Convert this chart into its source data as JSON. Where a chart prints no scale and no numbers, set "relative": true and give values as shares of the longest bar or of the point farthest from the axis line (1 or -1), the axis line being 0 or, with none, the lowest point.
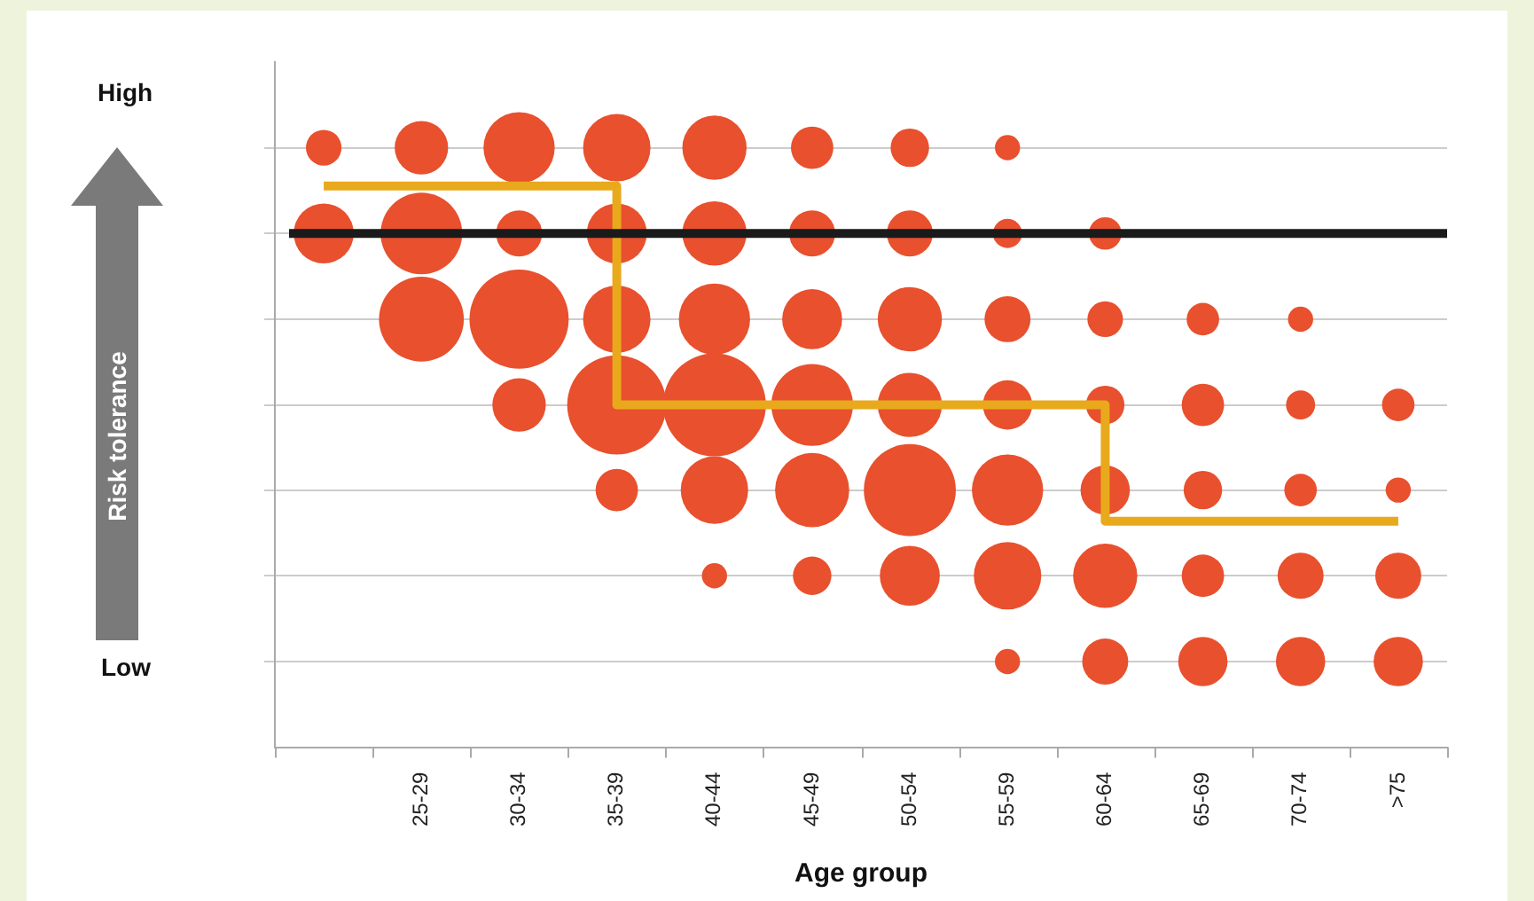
{
  "chart_data": {
    "type": "bubble",
    "relative": true,
    "xlabel": "Age group",
    "annotations": [
      "High",
      "Low",
      "Risk tolerance"
    ],
    "categories": [
      null,
      "25-29",
      "30-34",
      "35-39",
      "40-44",
      "45-49",
      "50-54",
      "55-59",
      "60-64",
      "65-69",
      "70-74",
      ">75"
    ],
    "series": [
      {
        "color": "#e8502e",
        "values": [
          1,
          1,
          1,
          1,
          1,
          1,
          1,
          1,
          null,
          null,
          null,
          null
        ],
        "sizes": [
          0.12,
          0.27,
          0.48,
          0.43,
          0.39,
          0.17,
          0.14,
          0.06,
          null,
          null,
          null,
          null
        ]
      },
      {
        "color": "#e8502e",
        "values": [
          0.857,
          0.857,
          0.857,
          0.857,
          0.857,
          0.857,
          0.857,
          0.857,
          0.857,
          null,
          null,
          null
        ],
        "sizes": [
          0.34,
          0.63,
          0.2,
          0.34,
          0.39,
          0.2,
          0.2,
          0.08,
          0.1,
          null,
          null,
          null
        ]
      },
      {
        "color": "#e8502e",
        "values": [
          null,
          0.714,
          0.714,
          0.714,
          0.714,
          0.714,
          0.714,
          0.714,
          0.714,
          0.714,
          0.714,
          null
        ],
        "sizes": [
          null,
          0.68,
          0.93,
          0.43,
          0.48,
          0.34,
          0.39,
          0.2,
          0.12,
          0.1,
          0.06,
          null
        ]
      },
      {
        "color": "#e8502e",
        "values": [
          null,
          null,
          0.571,
          0.571,
          0.571,
          0.571,
          0.571,
          0.571,
          0.571,
          0.571,
          0.571,
          0.571
        ],
        "sizes": [
          null,
          null,
          0.27,
          0.93,
          1,
          0.63,
          0.39,
          0.23,
          0.14,
          0.17,
          0.08,
          0.1
        ]
      },
      {
        "color": "#e8502e",
        "values": [
          null,
          null,
          null,
          0.429,
          0.429,
          0.429,
          0.429,
          0.429,
          0.429,
          0.429,
          0.429,
          0.429
        ],
        "sizes": [
          null,
          null,
          null,
          0.17,
          0.43,
          0.52,
          0.8,
          0.48,
          0.23,
          0.14,
          0.1,
          0.06
        ]
      },
      {
        "color": "#e8502e",
        "values": [
          null,
          null,
          null,
          null,
          0.286,
          0.286,
          0.286,
          0.286,
          0.286,
          0.286,
          0.286,
          0.286
        ],
        "sizes": [
          null,
          null,
          null,
          null,
          0.06,
          0.14,
          0.34,
          0.43,
          0.39,
          0.17,
          0.2,
          0.2
        ]
      },
      {
        "color": "#e8502e",
        "values": [
          null,
          null,
          null,
          null,
          null,
          null,
          null,
          0.143,
          0.143,
          0.143,
          0.143,
          0.143
        ],
        "sizes": [
          null,
          null,
          null,
          null,
          null,
          null,
          null,
          0.06,
          0.2,
          0.23,
          0.23,
          0.23
        ]
      },
      {
        "type": "step",
        "color": "#e8a91c",
        "values": [
          0.936,
          0.936,
          0.936,
          0.571,
          0.571,
          0.571,
          0.571,
          0.571,
          0.377,
          0.377,
          0.377,
          0.377
        ]
      }
    ],
    "ref_lines": [
      {
        "axis": "y",
        "value": 0.857,
        "color": "#1a1a1a"
      }
    ],
    "grid": "y",
    "legend": false
  }
}
